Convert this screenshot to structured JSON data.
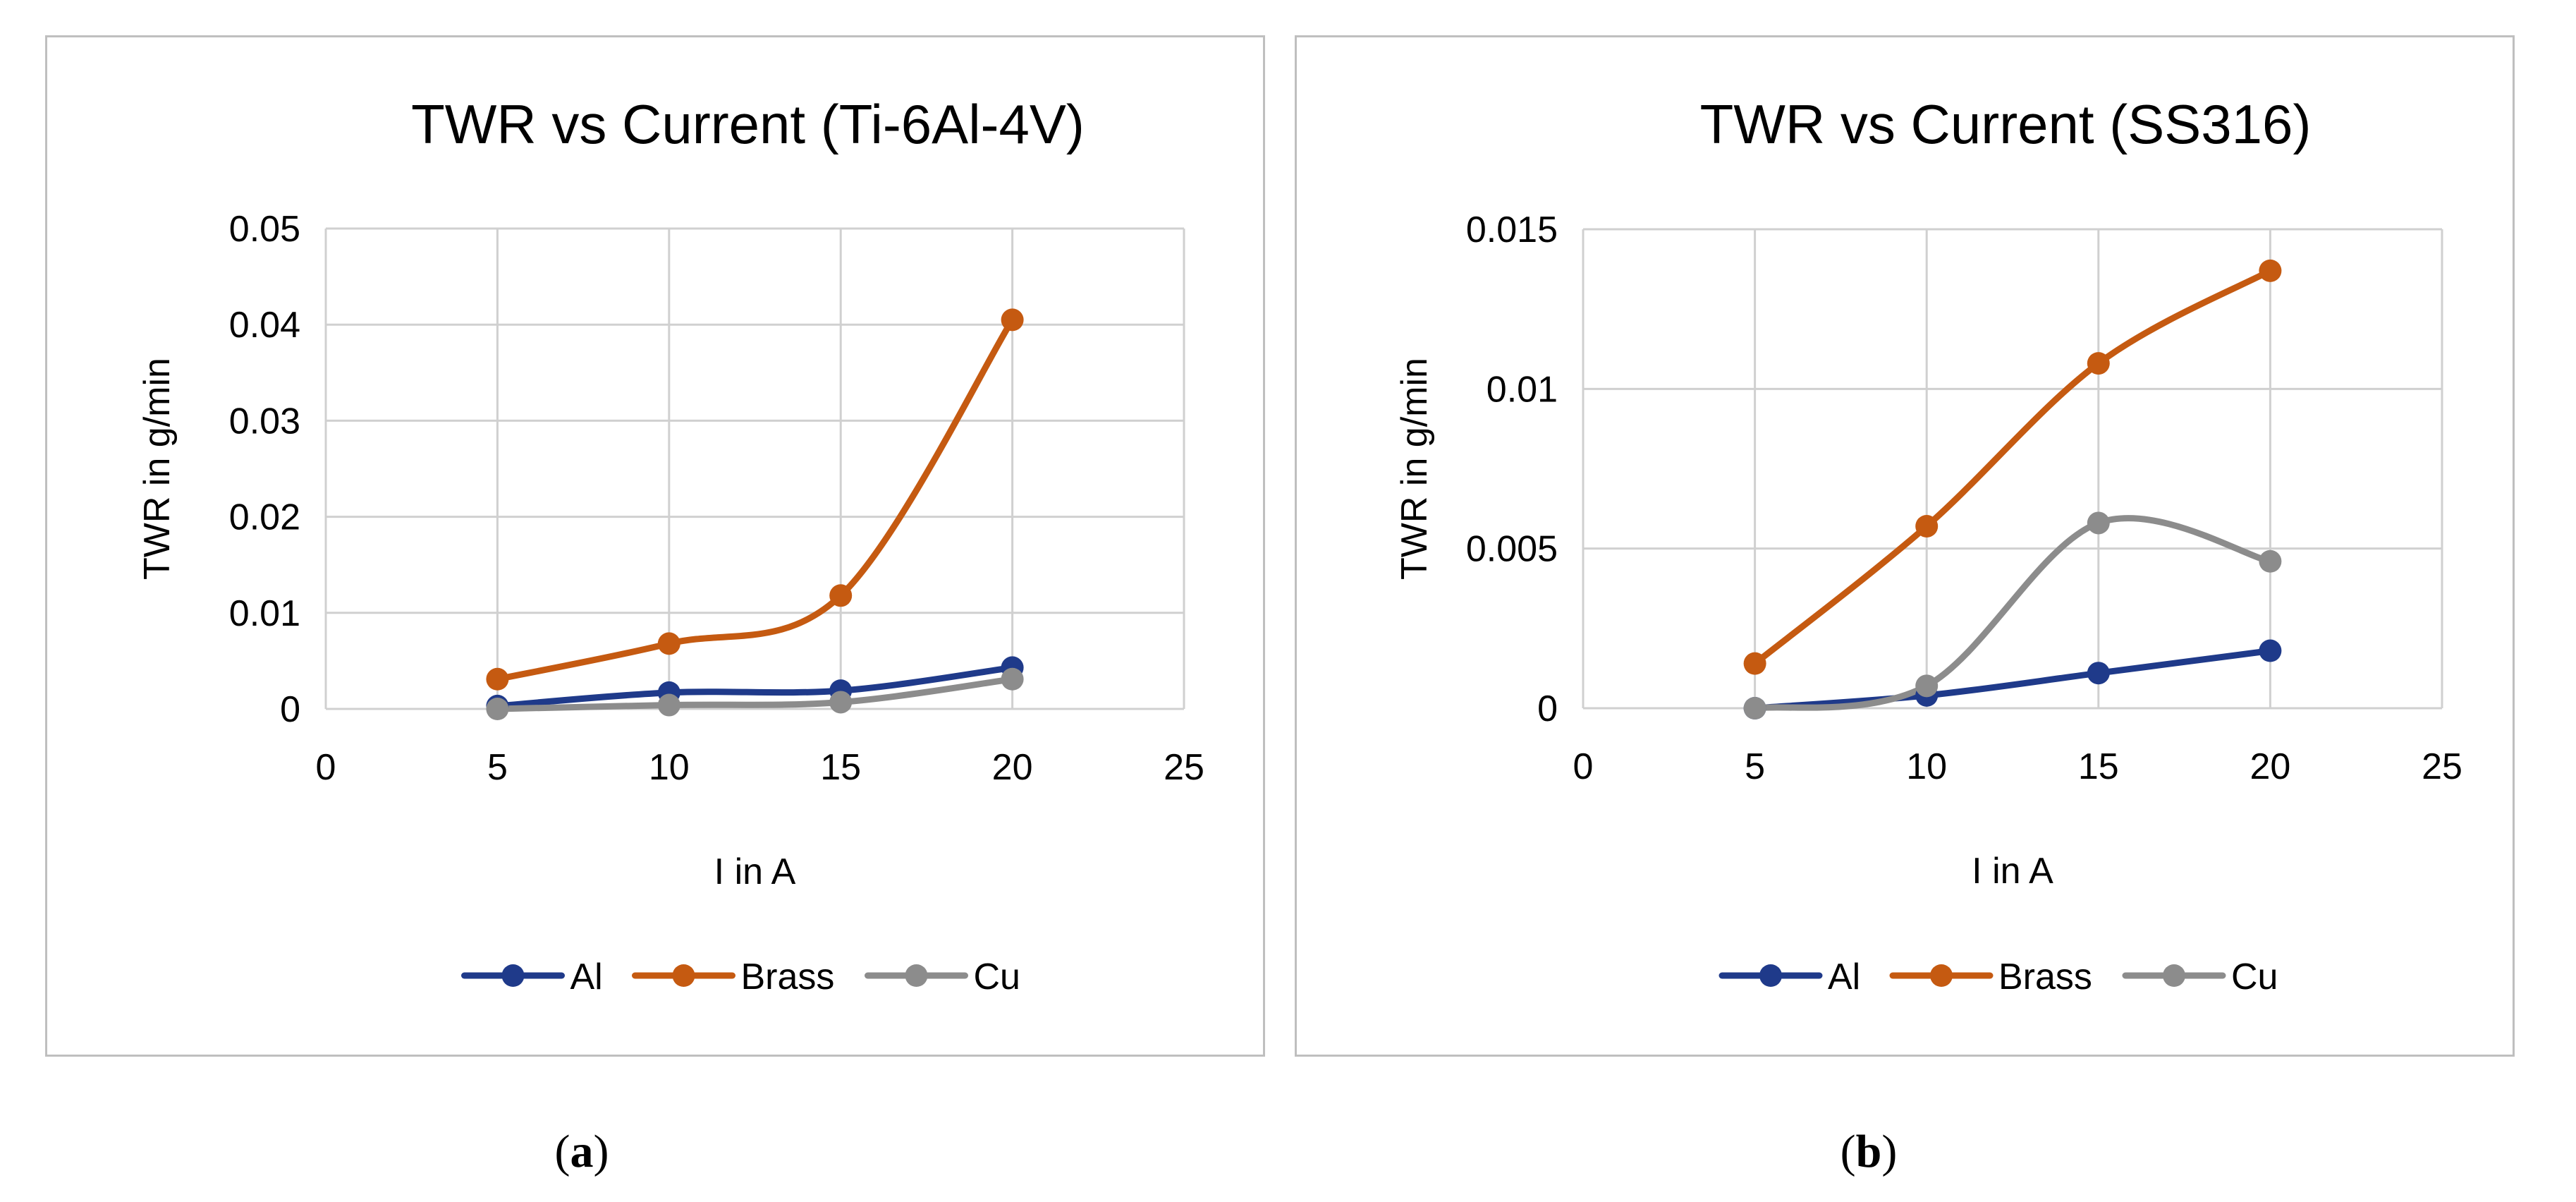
{
  "chart_data": [
    {
      "type": "line",
      "title": "TWR vs Current (Ti-6Al-4V)",
      "xlabel": "I in A",
      "ylabel": "TWR in g/min",
      "xlim": [
        0,
        25
      ],
      "ylim": [
        0,
        0.05
      ],
      "xticks": [
        0,
        5,
        10,
        15,
        20,
        25
      ],
      "xtick_labels": [
        "0",
        "5",
        "10",
        "15",
        "20",
        "25"
      ],
      "yticks": [
        0,
        0.01,
        0.02,
        0.03,
        0.04,
        0.05
      ],
      "ytick_labels": [
        "0",
        "0.01",
        "0.02",
        "0.03",
        "0.04",
        "0.05"
      ],
      "grid": true,
      "legend": "bottom",
      "x": [
        5,
        10,
        15,
        20
      ],
      "series": [
        {
          "name": "Al",
          "color": "#1f3a8a",
          "values": [
            0.0003,
            0.0017,
            0.0019,
            0.0043
          ]
        },
        {
          "name": "Brass",
          "color": "#c55a11",
          "values": [
            0.0031,
            0.0068,
            0.0118,
            0.0405
          ]
        },
        {
          "name": "Cu",
          "color": "#8c8c8c",
          "values": [
            0.0,
            0.0004,
            0.0007,
            0.0031
          ]
        }
      ]
    },
    {
      "type": "line",
      "title": "TWR vs Current (SS316)",
      "xlabel": "I in A",
      "ylabel": "TWR in g/min",
      "xlim": [
        0,
        25
      ],
      "ylim": [
        0,
        0.015
      ],
      "xticks": [
        0,
        5,
        10,
        15,
        20,
        25
      ],
      "xtick_labels": [
        "0",
        "5",
        "10",
        "15",
        "20",
        "25"
      ],
      "yticks": [
        0,
        0.005,
        0.01,
        0.015
      ],
      "ytick_labels": [
        "0",
        "0.005",
        "0.01",
        "0.015"
      ],
      "grid": true,
      "legend": "bottom",
      "x": [
        5,
        10,
        15,
        20
      ],
      "series": [
        {
          "name": "Al",
          "color": "#1f3a8a",
          "values": [
            0.0,
            0.0004,
            0.0011,
            0.0018
          ]
        },
        {
          "name": "Brass",
          "color": "#c55a11",
          "values": [
            0.0014,
            0.0057,
            0.0108,
            0.0137
          ]
        },
        {
          "name": "Cu",
          "color": "#8c8c8c",
          "values": [
            0.0,
            0.0007,
            0.0058,
            0.0046
          ]
        }
      ]
    }
  ],
  "captions": {
    "a": {
      "open": "(",
      "letter": "a",
      "close": ")"
    },
    "b": {
      "open": "(",
      "letter": "b",
      "close": ")"
    }
  }
}
